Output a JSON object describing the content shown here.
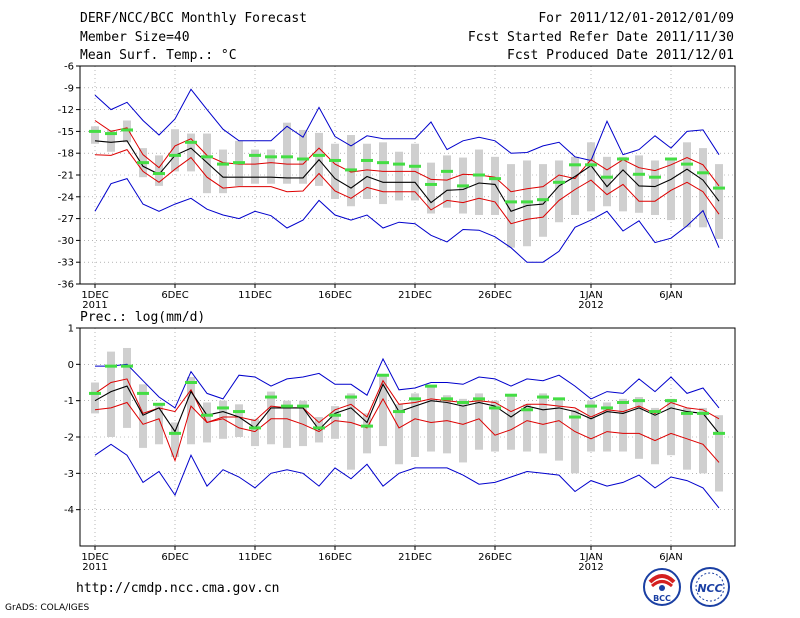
{
  "header": {
    "title": "DERF/NCC/BCC Monthly Forecast",
    "member_size": "Member Size=40",
    "variable_1": "Mean Surf. Temp.: °C",
    "period": "For 2011/12/01-2012/01/09",
    "started": "Fcst Started Refer Date 2011/11/30",
    "produced": "Fcst Produced Date 2011/12/01"
  },
  "footer": {
    "url": "http://cmdp.ncc.cma.gov.cn",
    "grads": "GrADS: COLA/IGES",
    "logo_left_text": "BCC",
    "logo_right_text": "NCC"
  },
  "colors": {
    "max_min": "#0000cc",
    "spread": "#dd0000",
    "mean": "#000000",
    "observed": "#44dd44",
    "box": "#cfcfcf"
  },
  "x_axis": {
    "days": 40,
    "tick_days": [
      1,
      6,
      11,
      16,
      21,
      26,
      32,
      37
    ],
    "tick_labels": [
      "1DEC",
      "6DEC",
      "11DEC",
      "16DEC",
      "21DEC",
      "26DEC",
      "1JAN",
      "6JAN"
    ],
    "year_labels": [
      {
        "day": 1,
        "text": "2011"
      },
      {
        "day": 32,
        "text": "2012"
      }
    ]
  },
  "chart_data": [
    {
      "type": "line",
      "title": "Mean Surf. Temp.: °C",
      "ylim": [
        -36,
        -6
      ],
      "yticks": [
        -6,
        -9,
        -12,
        -15,
        -18,
        -21,
        -24,
        -27,
        -30,
        -33,
        -36
      ],
      "grid": true,
      "series": [
        {
          "name": "max",
          "values": [
            -10,
            -12,
            -11,
            -13.5,
            -15.5,
            -13.3,
            -9.2,
            -12,
            -14.7,
            -16.3,
            -16.3,
            -16.3,
            -14.3,
            -15.8,
            -11.7,
            -15.7,
            -17,
            -15.6,
            -16,
            -16,
            -16,
            -13.7,
            -17.5,
            -16.3,
            -15.8,
            -16.3,
            -18,
            -17.9,
            -17,
            -16.5,
            -18.5,
            -19,
            -13.6,
            -18.2,
            -17.5,
            -15.6,
            -17.3,
            -15,
            -14.8,
            -18.2
          ]
        },
        {
          "name": "upper",
          "values": [
            -13.5,
            -15,
            -14.5,
            -18.2,
            -20,
            -17,
            -16,
            -18.3,
            -19.3,
            -19.5,
            -19.5,
            -19.3,
            -19.5,
            -19.5,
            -17.3,
            -19.5,
            -20.6,
            -20.3,
            -20.5,
            -20.5,
            -20.5,
            -21.6,
            -21.7,
            -20.9,
            -21,
            -21.3,
            -23.3,
            -22.9,
            -22.6,
            -21,
            -21.5,
            -18.9,
            -20.3,
            -18.9,
            -20,
            -20.4,
            -19.6,
            -18.6,
            -19.6,
            -22.5
          ]
        },
        {
          "name": "mean",
          "values": [
            -16.3,
            -16.5,
            -16.3,
            -19.8,
            -20.9,
            -18.3,
            -17.3,
            -19.3,
            -21.3,
            -21.3,
            -21.3,
            -21.3,
            -21.4,
            -21.4,
            -18.9,
            -21.5,
            -22.8,
            -21.2,
            -22,
            -22,
            -22,
            -24.8,
            -23.1,
            -23,
            -22.1,
            -22.3,
            -26,
            -25.2,
            -25,
            -22.5,
            -21.2,
            -19.7,
            -22.6,
            -20.3,
            -22.5,
            -22.6,
            -21.6,
            -20.2,
            -21.7,
            -24.6
          ]
        },
        {
          "name": "lower",
          "values": [
            -18.2,
            -18.3,
            -17.5,
            -20.5,
            -22,
            -20.2,
            -18.6,
            -21.3,
            -22.8,
            -22.6,
            -22.6,
            -22.6,
            -23.3,
            -23.2,
            -20.8,
            -23.2,
            -24.2,
            -22.7,
            -23.3,
            -23.3,
            -23.3,
            -25.8,
            -24.5,
            -24.8,
            -24.2,
            -24.7,
            -27.7,
            -27.1,
            -26.8,
            -24.5,
            -23,
            -21.7,
            -23.7,
            -22.3,
            -24.6,
            -24.6,
            -23.1,
            -22,
            -23.3,
            -26.4
          ]
        },
        {
          "name": "min",
          "values": [
            -26,
            -22.2,
            -21.5,
            -25,
            -26,
            -25,
            -24.2,
            -25.7,
            -26.5,
            -27,
            -26,
            -26.6,
            -28.3,
            -27.2,
            -24.5,
            -26.5,
            -27.2,
            -26.5,
            -28.3,
            -27.5,
            -27.7,
            -29.3,
            -30.2,
            -28.5,
            -28.6,
            -29.5,
            -31,
            -33,
            -33,
            -31.5,
            -28.2,
            -27.2,
            -26,
            -28.7,
            -27.3,
            -30.3,
            -29.7,
            -28,
            -25.9,
            -31
          ]
        },
        {
          "name": "observed",
          "values": [
            -15,
            -15.3,
            -14.8,
            -19.3,
            -20.8,
            -18.3,
            -16.5,
            -18.5,
            -19.5,
            -19.3,
            -18.3,
            -18.5,
            -18.5,
            -18.8,
            -18.3,
            -19,
            -20.3,
            -19,
            -19.3,
            -19.5,
            -19.8,
            -22.3,
            -20.5,
            -22.5,
            -21,
            -21.5,
            -24.7,
            -24.7,
            -24.4,
            -22,
            -19.6,
            -19.6,
            -21.3,
            -18.8,
            -20.9,
            -21.3,
            -18.8,
            -19.5,
            -20.7,
            -22.8
          ]
        },
        {
          "name": "box_top",
          "values": [
            -14.3,
            -14.8,
            -13.5,
            -17.3,
            -18.3,
            -14.7,
            -15.3,
            -15.3,
            -17.5,
            -16.3,
            -17.5,
            -17.5,
            -13.8,
            -14.8,
            -15.2,
            -16.7,
            -15.5,
            -16.7,
            -16.5,
            -17.8,
            -16.7,
            -19.3,
            -18.3,
            -18.6,
            -17.5,
            -18.5,
            -19.5,
            -19,
            -19.5,
            -19,
            -18.5,
            -16.5,
            -18.5,
            -18.5,
            -18.3,
            -19,
            -18.7,
            -16.5,
            -17.3,
            -19.5
          ]
        },
        {
          "name": "box_bottom",
          "values": [
            -16.7,
            -17.8,
            -16.5,
            -21.3,
            -22.5,
            -20.5,
            -20.5,
            -23.5,
            -23.5,
            -22.5,
            -22.2,
            -22.2,
            -22.2,
            -22.2,
            -22.5,
            -24.3,
            -25.3,
            -24.3,
            -25,
            -24.5,
            -24.5,
            -26.3,
            -25.5,
            -26.3,
            -26.5,
            -26.5,
            -31,
            -30.8,
            -29.5,
            -27.5,
            -26.5,
            -26,
            -25.3,
            -26,
            -26.2,
            -26.5,
            -27.2,
            -28.2,
            -28.2,
            -29.8
          ]
        }
      ]
    },
    {
      "type": "line",
      "title": "Prec.: log(mm/d)",
      "ylim": [
        -5,
        1
      ],
      "yticks": [
        1,
        0,
        -1,
        -2,
        -3,
        -4
      ],
      "grid": true,
      "series": [
        {
          "name": "max",
          "values": [
            -0.05,
            -0.05,
            0,
            -0.45,
            -0.9,
            -1.2,
            -0.2,
            -0.8,
            -0.95,
            -0.3,
            -0.35,
            -0.6,
            -0.4,
            -0.35,
            -0.25,
            -0.55,
            -0.55,
            -0.85,
            0.15,
            -0.7,
            -0.65,
            -0.5,
            -0.5,
            -0.55,
            -0.35,
            -0.4,
            -0.6,
            -0.4,
            -0.45,
            -0.3,
            -0.6,
            -0.95,
            -0.75,
            -0.8,
            -0.4,
            -0.75,
            -0.35,
            -0.8,
            -0.65,
            -1.2
          ]
        },
        {
          "name": "upper",
          "values": [
            -0.8,
            -0.5,
            -0.4,
            -1.35,
            -1.2,
            -1.3,
            -0.7,
            -1.6,
            -1.45,
            -1.45,
            -1.55,
            -1.15,
            -1.2,
            -1.2,
            -1.6,
            -1.25,
            -1.1,
            -1.45,
            -0.45,
            -1.1,
            -1.05,
            -0.95,
            -1,
            -1.05,
            -1,
            -1.05,
            -1.3,
            -1.1,
            -1.1,
            -1.15,
            -1.2,
            -1.45,
            -1.25,
            -1.3,
            -1.15,
            -1.35,
            -1.05,
            -1.2,
            -1.25,
            -1.5
          ]
        },
        {
          "name": "mean",
          "values": [
            -1,
            -0.75,
            -0.6,
            -1.4,
            -1.2,
            -1.85,
            -0.75,
            -1.4,
            -1.3,
            -1.45,
            -1.75,
            -1.2,
            -1.2,
            -1.2,
            -1.8,
            -1.35,
            -1.2,
            -1.6,
            -0.55,
            -1.3,
            -1.15,
            -1,
            -1.05,
            -1.15,
            -1.05,
            -1.15,
            -1.45,
            -1.15,
            -1.25,
            -1.2,
            -1.3,
            -1.5,
            -1.3,
            -1.35,
            -1.2,
            -1.4,
            -1.2,
            -1.3,
            -1.35,
            -1.9
          ]
        },
        {
          "name": "lower",
          "values": [
            -1.25,
            -1.2,
            -1.05,
            -1.65,
            -1.5,
            -2.65,
            -1.15,
            -1.6,
            -1.5,
            -1.75,
            -1.85,
            -1.5,
            -1.5,
            -1.65,
            -1.85,
            -1.55,
            -1.6,
            -1.75,
            -0.95,
            -1.75,
            -1.5,
            -1.6,
            -1.55,
            -1.65,
            -1.5,
            -1.95,
            -1.8,
            -1.55,
            -1.65,
            -1.55,
            -1.85,
            -2.05,
            -1.85,
            -1.9,
            -1.9,
            -2.1,
            -1.9,
            -2.05,
            -2.2,
            -2.7
          ]
        },
        {
          "name": "min",
          "values": [
            -2.5,
            -2.2,
            -2.5,
            -3.25,
            -2.95,
            -3.6,
            -2.5,
            -3.35,
            -2.9,
            -3.1,
            -3.4,
            -3,
            -2.9,
            -3,
            -3.35,
            -2.85,
            -3.15,
            -2.75,
            -3.35,
            -3,
            -2.85,
            -2.85,
            -2.85,
            -3.05,
            -3.3,
            -3.25,
            -3.1,
            -2.95,
            -3,
            -3.05,
            -3.5,
            -3.2,
            -3.35,
            -3.25,
            -3.05,
            -3.4,
            -3.1,
            -3.2,
            -3.4,
            -3.95
          ]
        },
        {
          "name": "observed",
          "values": [
            -0.8,
            -0.05,
            -0.05,
            -0.8,
            -1.1,
            -1.9,
            -0.5,
            -1.4,
            -1.2,
            -1.3,
            -1.75,
            -0.9,
            -1.15,
            -1.15,
            -1.75,
            -1.4,
            -0.9,
            -1.7,
            -0.3,
            -1.3,
            -0.95,
            -0.6,
            -0.95,
            -1.05,
            -0.95,
            -1.2,
            -0.85,
            -1.25,
            -0.9,
            -0.95,
            -1.45,
            -1.15,
            -1.2,
            -1.05,
            -1,
            -1.3,
            -1,
            -1.35,
            -1.35,
            -1.9
          ]
        },
        {
          "name": "box_top",
          "values": [
            -0.5,
            0.35,
            0.45,
            -0.55,
            -1.1,
            -1.6,
            -0.35,
            -1.05,
            -1,
            -1.1,
            -1.5,
            -0.75,
            -1,
            -1,
            -1.45,
            -1.15,
            -0.8,
            -1.35,
            -0.3,
            -1.1,
            -0.8,
            -0.6,
            -0.85,
            -0.95,
            -0.8,
            -1,
            -0.85,
            -1.1,
            -0.8,
            -0.95,
            -1.25,
            -1,
            -1.05,
            -0.95,
            -0.9,
            -1.2,
            -0.95,
            -1.2,
            -1.2,
            -1.4
          ]
        },
        {
          "name": "box_bottom",
          "values": [
            -1.35,
            -2,
            -1.75,
            -2.3,
            -2.2,
            -2.55,
            -2.2,
            -2.15,
            -2.05,
            -2,
            -2.25,
            -2.2,
            -2.3,
            -2.25,
            -2.15,
            -2.05,
            -2.9,
            -2.45,
            -2.25,
            -2.75,
            -2.55,
            -2.4,
            -2.45,
            -2.7,
            -2.35,
            -2.4,
            -2.35,
            -2.4,
            -2.45,
            -2.65,
            -3,
            -2.4,
            -2.4,
            -2.4,
            -2.6,
            -2.75,
            -2.5,
            -2.9,
            -3,
            -3.5
          ]
        }
      ]
    }
  ]
}
